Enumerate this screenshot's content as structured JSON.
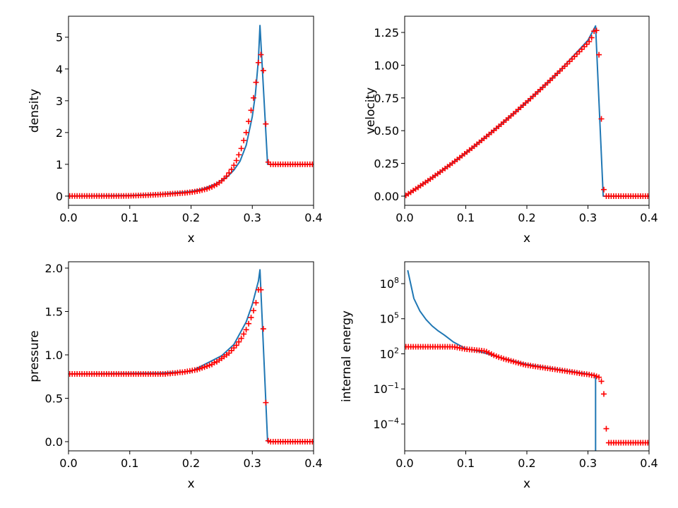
{
  "colors": {
    "exact": "#1f77b4",
    "numerical": "#ff0000"
  },
  "x_points": [
    0.002,
    0.006,
    0.01,
    0.014,
    0.018,
    0.022,
    0.026,
    0.03,
    0.034,
    0.038,
    0.042,
    0.046,
    0.05,
    0.054,
    0.058,
    0.062,
    0.066,
    0.07,
    0.074,
    0.078,
    0.082,
    0.086,
    0.09,
    0.094,
    0.098,
    0.102,
    0.106,
    0.11,
    0.114,
    0.118,
    0.122,
    0.126,
    0.13,
    0.134,
    0.138,
    0.142,
    0.146,
    0.15,
    0.154,
    0.158,
    0.162,
    0.166,
    0.17,
    0.174,
    0.178,
    0.182,
    0.186,
    0.19,
    0.194,
    0.198,
    0.202,
    0.206,
    0.21,
    0.214,
    0.218,
    0.222,
    0.226,
    0.23,
    0.234,
    0.238,
    0.242,
    0.246,
    0.25,
    0.254,
    0.258,
    0.262,
    0.266,
    0.27,
    0.274,
    0.278,
    0.282,
    0.286,
    0.29,
    0.294,
    0.298,
    0.302,
    0.306,
    0.31,
    0.314,
    0.318,
    0.322,
    0.326,
    0.33,
    0.334,
    0.338,
    0.342,
    0.346,
    0.35,
    0.354,
    0.358,
    0.362,
    0.366,
    0.37,
    0.374,
    0.378,
    0.382,
    0.386,
    0.39,
    0.394,
    0.398
  ],
  "chart_data": [
    {
      "type": "line+scatter",
      "xlabel": "x",
      "ylabel": "density",
      "xlim": [
        0.0,
        0.4
      ],
      "ylim": [
        -0.29,
        5.66
      ],
      "yscale": "linear",
      "grid": false,
      "xticks": [
        0.0,
        0.1,
        0.2,
        0.3,
        0.4
      ],
      "xtick_labels": [
        "0.0",
        "0.1",
        "0.2",
        "0.3",
        "0.4"
      ],
      "yticks": [
        0,
        1,
        2,
        3,
        4,
        5
      ],
      "ytick_labels": [
        "0",
        "1",
        "2",
        "3",
        "4",
        "5"
      ],
      "exact": {
        "x": [
          0,
          0.1,
          0.15,
          0.2,
          0.22,
          0.24,
          0.26,
          0.27,
          0.28,
          0.29,
          0.3,
          0.305,
          0.31,
          0.3125,
          0.325,
          0.4
        ],
        "y": [
          0,
          0.02,
          0.06,
          0.15,
          0.23,
          0.38,
          0.62,
          0.82,
          1.1,
          1.6,
          2.5,
          3.2,
          4.3,
          5.37,
          1.0,
          1.0
        ]
      },
      "numerical": [
        0.003,
        0.003,
        0.003,
        0.003,
        0.003,
        0.003,
        0.003,
        0.003,
        0.003,
        0.003,
        0.003,
        0.003,
        0.003,
        0.003,
        0.003,
        0.003,
        0.003,
        0.003,
        0.003,
        0.003,
        0.004,
        0.004,
        0.005,
        0.006,
        0.008,
        0.01,
        0.012,
        0.015,
        0.018,
        0.021,
        0.024,
        0.027,
        0.03,
        0.034,
        0.038,
        0.042,
        0.046,
        0.05,
        0.055,
        0.06,
        0.065,
        0.07,
        0.075,
        0.08,
        0.085,
        0.09,
        0.095,
        0.1,
        0.11,
        0.12,
        0.13,
        0.14,
        0.155,
        0.17,
        0.19,
        0.21,
        0.23,
        0.26,
        0.29,
        0.33,
        0.37,
        0.42,
        0.48,
        0.55,
        0.63,
        0.73,
        0.84,
        0.97,
        1.12,
        1.3,
        1.5,
        1.75,
        2.0,
        2.35,
        2.7,
        3.09,
        3.58,
        4.2,
        4.45,
        3.95,
        2.27,
        1.07,
        1.0,
        1.0,
        1.0,
        1.0,
        1.0,
        1.0,
        1.0,
        1.0,
        1.0,
        1.0,
        1.0,
        1.0,
        1.0,
        1.0,
        1.0,
        1.0,
        1.0,
        1.0
      ]
    },
    {
      "type": "line+scatter",
      "xlabel": "x",
      "ylabel": "velocity",
      "xlim": [
        0.0,
        0.4
      ],
      "ylim": [
        -0.07,
        1.374
      ],
      "yscale": "linear",
      "grid": false,
      "xticks": [
        0.0,
        0.1,
        0.2,
        0.3,
        0.4
      ],
      "xtick_labels": [
        "0.0",
        "0.1",
        "0.2",
        "0.3",
        "0.4"
      ],
      "yticks": [
        0,
        0.25,
        0.5,
        0.75,
        1.0,
        1.25
      ],
      "ytick_labels": [
        "0.00",
        "0.25",
        "0.50",
        "0.75",
        "1.00",
        "1.25"
      ],
      "exact": {
        "x": [
          0,
          0.05,
          0.1,
          0.15,
          0.2,
          0.25,
          0.3,
          0.3125,
          0.325,
          0.4
        ],
        "y": [
          0,
          0.16,
          0.33,
          0.52,
          0.72,
          0.94,
          1.19,
          1.3,
          0,
          0
        ]
      },
      "numerical": [
        0.006,
        0.018,
        0.03,
        0.043,
        0.055,
        0.067,
        0.08,
        0.093,
        0.105,
        0.118,
        0.131,
        0.144,
        0.158,
        0.171,
        0.184,
        0.198,
        0.211,
        0.225,
        0.238,
        0.252,
        0.266,
        0.28,
        0.294,
        0.309,
        0.323,
        0.337,
        0.352,
        0.366,
        0.381,
        0.396,
        0.411,
        0.426,
        0.441,
        0.456,
        0.471,
        0.487,
        0.502,
        0.518,
        0.533,
        0.549,
        0.565,
        0.581,
        0.597,
        0.613,
        0.629,
        0.645,
        0.662,
        0.678,
        0.695,
        0.712,
        0.728,
        0.745,
        0.762,
        0.779,
        0.797,
        0.814,
        0.831,
        0.849,
        0.866,
        0.884,
        0.902,
        0.92,
        0.938,
        0.956,
        0.974,
        0.992,
        1.01,
        1.029,
        1.047,
        1.066,
        1.085,
        1.103,
        1.122,
        1.141,
        1.16,
        1.18,
        1.21,
        1.26,
        1.265,
        1.08,
        0.59,
        0.05,
        0,
        0,
        0,
        0,
        0,
        0,
        0,
        0,
        0,
        0,
        0,
        0,
        0,
        0,
        0,
        0,
        0,
        0
      ]
    },
    {
      "type": "line+scatter",
      "xlabel": "x",
      "ylabel": "pressure",
      "xlim": [
        0.0,
        0.4
      ],
      "ylim": [
        -0.106,
        2.073
      ],
      "yscale": "linear",
      "grid": false,
      "xticks": [
        0.0,
        0.1,
        0.2,
        0.3,
        0.4
      ],
      "xtick_labels": [
        "0.0",
        "0.1",
        "0.2",
        "0.3",
        "0.4"
      ],
      "yticks": [
        0,
        0.5,
        1.0,
        1.5,
        2.0
      ],
      "ytick_labels": [
        "0.0",
        "0.5",
        "1.0",
        "1.5",
        "2.0"
      ],
      "exact": {
        "x": [
          0,
          0.15,
          0.2,
          0.25,
          0.27,
          0.29,
          0.3,
          0.31,
          0.3125,
          0.325,
          0.4
        ],
        "y": [
          0.78,
          0.79,
          0.81,
          0.99,
          1.12,
          1.38,
          1.58,
          1.85,
          1.98,
          0,
          0
        ]
      },
      "numerical": [
        0.78,
        0.78,
        0.78,
        0.78,
        0.78,
        0.78,
        0.78,
        0.78,
        0.78,
        0.78,
        0.78,
        0.78,
        0.78,
        0.78,
        0.78,
        0.78,
        0.78,
        0.78,
        0.78,
        0.78,
        0.78,
        0.78,
        0.78,
        0.78,
        0.78,
        0.78,
        0.78,
        0.78,
        0.78,
        0.78,
        0.78,
        0.78,
        0.78,
        0.78,
        0.78,
        0.78,
        0.78,
        0.78,
        0.78,
        0.78,
        0.785,
        0.785,
        0.79,
        0.79,
        0.795,
        0.8,
        0.8,
        0.805,
        0.81,
        0.815,
        0.82,
        0.825,
        0.83,
        0.84,
        0.85,
        0.86,
        0.87,
        0.88,
        0.89,
        0.91,
        0.92,
        0.94,
        0.96,
        0.98,
        1.0,
        1.02,
        1.05,
        1.08,
        1.11,
        1.15,
        1.19,
        1.24,
        1.29,
        1.36,
        1.43,
        1.51,
        1.6,
        1.75,
        1.75,
        1.3,
        0.45,
        0.01,
        0,
        0,
        0,
        0,
        0,
        0,
        0,
        0,
        0,
        0,
        0,
        0,
        0,
        0,
        0,
        0,
        0,
        0
      ]
    },
    {
      "type": "line+scatter",
      "xlabel": "x",
      "ylabel": "internal energy",
      "xlim": [
        0.0,
        0.4
      ],
      "ylim": [
        5.1e-07,
        7400000000.0
      ],
      "yscale": "log",
      "grid": false,
      "xticks": [
        0.0,
        0.1,
        0.2,
        0.3,
        0.4
      ],
      "xtick_labels": [
        "0.0",
        "0.1",
        "0.2",
        "0.3",
        "0.4"
      ],
      "yticks": [
        100000000.0,
        100000.0,
        100.0,
        0.1,
        0.0001
      ],
      "ytick_labels": [
        "10^8",
        "10^5",
        "10^2",
        "10^-1",
        "10^-4"
      ],
      "exact": {
        "x": [
          0.005,
          0.015,
          0.025,
          0.035,
          0.045,
          0.055,
          0.065,
          0.08,
          0.1,
          0.12,
          0.15,
          0.2,
          0.25,
          0.3,
          0.3125,
          0.3125,
          0.4
        ],
        "y": [
          1400000000.0,
          5400000.0,
          450000.0,
          85000.0,
          24000.0,
          9000,
          4000,
          1000,
          280,
          170,
          60,
          12.6,
          4.8,
          1.9,
          1.4,
          0,
          0
        ]
      },
      "numerical": [
        398,
        398,
        398,
        398,
        398,
        398,
        398,
        398,
        398,
        398,
        398,
        398,
        398,
        398,
        398,
        398,
        398,
        398,
        398,
        398,
        380,
        347,
        316,
        288,
        263,
        245,
        234,
        224,
        214,
        204,
        195,
        186,
        174,
        151,
        120,
        95,
        76,
        63,
        52,
        45,
        38,
        33,
        29,
        25,
        22,
        19,
        16.6,
        14.5,
        12.6,
        11.2,
        10.5,
        9.8,
        8.9,
        8.3,
        7.8,
        7.2,
        6.8,
        6.2,
        5.8,
        5.4,
        5.0,
        4.7,
        4.3,
        4.0,
        3.7,
        3.5,
        3.2,
        3.0,
        2.8,
        2.6,
        2.4,
        2.2,
        2.0,
        1.9,
        1.8,
        1.7,
        1.5,
        1.4,
        1.2,
        1.0,
        0.45,
        0.037,
        4e-05,
        2.5e-06,
        2.5e-06,
        2.5e-06,
        2.5e-06,
        2.5e-06,
        2.5e-06,
        2.5e-06,
        2.5e-06,
        2.5e-06,
        2.5e-06,
        2.5e-06,
        2.5e-06,
        2.5e-06,
        2.5e-06,
        2.5e-06,
        2.5e-06,
        2.5e-06
      ]
    }
  ]
}
